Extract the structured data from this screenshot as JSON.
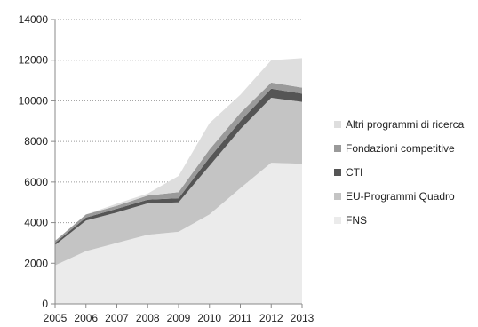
{
  "chart_data": {
    "type": "area",
    "stacked": true,
    "x": [
      "2005",
      "2006",
      "2007",
      "2008",
      "2009",
      "2010",
      "2011",
      "2012",
      "2013"
    ],
    "ylim": [
      0,
      14000
    ],
    "yticks": [
      0,
      2000,
      4000,
      6000,
      8000,
      10000,
      12000,
      14000
    ],
    "grid": true,
    "legend_position": "right",
    "series": [
      {
        "name": "FNS",
        "color": "#ebebeb",
        "values": [
          1900,
          2600,
          3000,
          3400,
          3550,
          4400,
          5700,
          6950,
          6900
        ]
      },
      {
        "name": "EU-Programmi Quadro",
        "color": "#c4c4c4",
        "values": [
          1000,
          1500,
          1500,
          1550,
          1450,
          2400,
          2900,
          3200,
          3050
        ]
      },
      {
        "name": "CTI",
        "color": "#555555",
        "values": [
          100,
          150,
          180,
          180,
          200,
          400,
          400,
          450,
          400
        ]
      },
      {
        "name": "Fondazioni competitive",
        "color": "#9a9a9a",
        "values": [
          100,
          150,
          150,
          200,
          300,
          400,
          400,
          300,
          300
        ]
      },
      {
        "name": "Altri programmi di ricerca",
        "color": "#dedede",
        "values": [
          0,
          0,
          100,
          100,
          800,
          1300,
          900,
          1100,
          1450
        ]
      }
    ],
    "legend_order": [
      "Altri programmi di ricerca",
      "Fondazioni competitive",
      "CTI",
      "EU-Programmi Quadro",
      "FNS"
    ]
  }
}
